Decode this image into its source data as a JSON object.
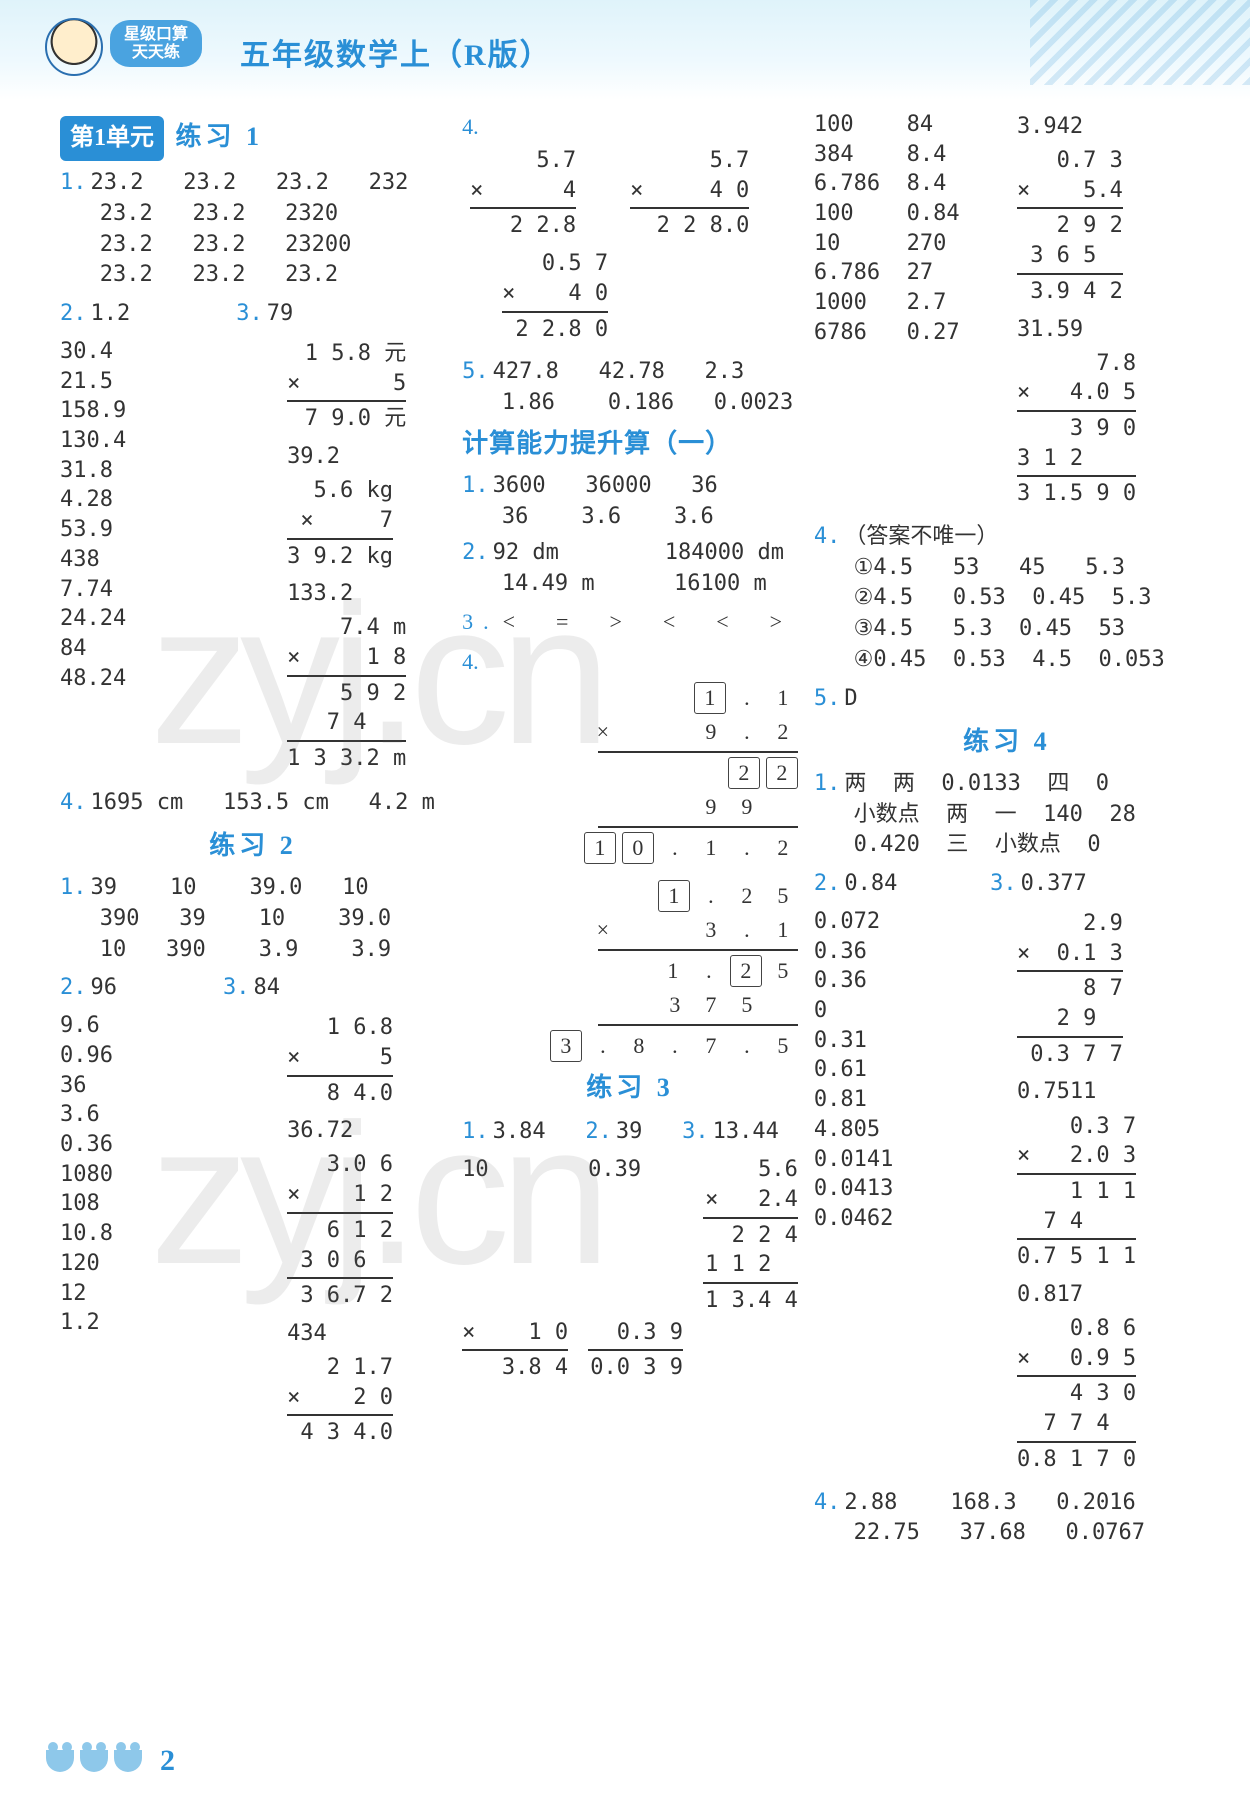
{
  "header": {
    "logo_top": "星级口算",
    "logo_bottom": "天天练",
    "title": "五年级数学上（R版）"
  },
  "unit_badge": "第1单元",
  "page_number": "2",
  "col1": {
    "ex1": {
      "title": "练习 1",
      "q1": {
        "row1": "23.2   23.2   23.2   232",
        "row2": "23.2   23.2   2320",
        "row3": "23.2   23.2   23200",
        "row4": "23.2   23.2   23.2"
      },
      "q2": "1.2",
      "q3": "79",
      "left_nums": [
        "30.4",
        "21.5",
        "158.9",
        "130.4",
        "31.8",
        "4.28",
        "53.9",
        "438",
        "7.74",
        "24.24",
        "84",
        "48.24"
      ],
      "calc1": {
        "n1": "1 5.8 元",
        "op": "×       5",
        "res": "7 9.0 元"
      },
      "right_a": "39.2",
      "calc2": {
        "n1": "5.6 kg",
        "op": "×     7",
        "res": "3 9.2 kg"
      },
      "right_b": "133.2",
      "calc3": {
        "n1": "7.4 m",
        "op": "×     1 8",
        "p1": "5 9 2",
        "p2": "7 4   ",
        "res": "1 3 3.2 m"
      },
      "q4": "1695 cm   153.5 cm   4.2 m"
    },
    "ex2": {
      "title": "练习 2",
      "q1": {
        "r1": "39    10    39.0   10",
        "r2": "390   39    10    39.0",
        "r3": "10   390    3.9    3.9"
      },
      "q2": "96",
      "q3": "84",
      "left_nums": [
        "9.6",
        "0.96",
        "36",
        "3.6",
        "0.36",
        "1080",
        "108",
        "10.8",
        "120",
        "12",
        "1.2"
      ],
      "calc1": {
        "n1": "1 6.8",
        "op": "×      5",
        "res": "8 4.0"
      },
      "right_a": "36.72",
      "calc2": {
        "n1": "3.0 6",
        "op": "×    1 2",
        "p1": "6 1 2",
        "p2": "3 0 6  ",
        "res": "3 6.7 2"
      },
      "right_b": "434",
      "calc3": {
        "n1": "2 1.7",
        "op": "×    2 0",
        "res": "4 3 4.0"
      }
    }
  },
  "col2": {
    "q4": {
      "left": {
        "n1": "5.7",
        "op": "×      4",
        "res": "2 2.8"
      },
      "right": {
        "n1": "5.7",
        "op": "×     4 0",
        "res": "2 2 8.0"
      },
      "extra": {
        "n1": "0.5 7",
        "op": "×    4 0",
        "res": "2 2.8 0"
      }
    },
    "q5": {
      "r1": "427.8   42.78   2.3",
      "r2": "1.86    0.186   0.0023"
    },
    "up1": {
      "title": "计算能力提升算（一）",
      "q1": {
        "r1": "3600   36000   36",
        "r2": "36    3.6    3.6"
      },
      "q2": {
        "r1": "92 dm        184000 dm",
        "r2": "14.49 m      16100 m"
      },
      "q3": "<  =  >  <  <  >",
      "q4": {
        "a": {
          "top": [
            "1",
            ".",
            "1"
          ],
          "mul": [
            "×",
            "",
            "",
            "9",
            ".",
            "2"
          ],
          "p1": [
            "",
            "",
            "2",
            "2"
          ],
          "p2": [
            "",
            "9",
            "9",
            ""
          ],
          "res": [
            "1",
            "0",
            ".",
            "1",
            ".",
            "2"
          ]
        },
        "b": {
          "top": [
            "1",
            ".",
            "2",
            "5"
          ],
          "mul": [
            "×",
            "",
            "",
            "3",
            ".",
            "1"
          ],
          "p1": [
            "",
            "1",
            ".",
            "2",
            "5"
          ],
          "p2": [
            "3",
            "7",
            "5",
            ""
          ],
          "res": [
            "3",
            ".",
            "8",
            ".",
            "7",
            ".",
            "5"
          ]
        }
      }
    },
    "ex3": {
      "title": "练习 3",
      "q1": "3.84",
      "q2": "39",
      "q3": "13.44",
      "cols": [
        "10",
        "0.39",
        "5.6"
      ],
      "calc1": {
        "n1": "",
        "op": "×    1 0",
        "res": "3.8 4"
      },
      "calc2": {
        "n1": "",
        "op": "0.3 9",
        "res": "0.0 3 9"
      },
      "calc3": {
        "n1": "5.6",
        "op": "×   2.4",
        "p1": "2 2 4",
        "p2": "1 1 2  ",
        "res": "1 3.4 4"
      }
    }
  },
  "col3": {
    "top": {
      "h1": [
        "100",
        "84",
        "3.942"
      ],
      "h2": [
        "384",
        "8.4"
      ],
      "h3": [
        "6.786",
        "8.4"
      ],
      "h4": [
        "100",
        "0.84"
      ],
      "h5": [
        "10",
        "270",
        "31.59"
      ],
      "h6": [
        "6.786",
        "27"
      ],
      "h7": [
        "1000",
        "2.7"
      ],
      "h8": [
        "6786",
        "0.27"
      ]
    },
    "calc1": {
      "n1": "0.7 3",
      "op": "×    5.4",
      "p1": "2 9 2",
      "p2": "3 6 5  ",
      "res": "3.9 4 2"
    },
    "calc2": {
      "n1": "7.8",
      "op": "×   4.0 5",
      "p1": "3 9 0",
      "p2": "3 1 2    ",
      "res": "3 1.5 9 0"
    },
    "q4": {
      "note": "（答案不唯一）",
      "r1": "①4.5   53   45   5.3",
      "r2": "②4.5   0.53  0.45  5.3",
      "r3": "③4.5   5.3  0.45  53",
      "r4": "④0.45  0.53  4.5  0.053"
    },
    "q5": "D",
    "ex4": {
      "title": "练习 4",
      "q1": {
        "r1": "两  两  0.0133  四  0",
        "r2": "小数点  两  一  140  28",
        "r3": "0.420  三  小数点  0"
      },
      "q2": "0.84",
      "q3": "0.377",
      "left_nums": [
        "0.072",
        "0.36",
        "0.36",
        "0",
        "0.31",
        "0.61",
        "0.81",
        "4.805",
        "0.0141",
        "0.0413",
        "0.0462"
      ],
      "calc1": {
        "n1": "2.9",
        "op": "×  0.1 3",
        "p1": "8 7",
        "p2": "2 9  ",
        "res": "0.3 7 7"
      },
      "right_a": "0.7511",
      "calc2": {
        "n1": "0.3 7",
        "op": "×   2.0 3",
        "p1": "1 1 1",
        "p2": "7 4    ",
        "res": "0.7 5 1 1"
      },
      "right_b": "0.817",
      "calc3": {
        "n1": "0.8 6",
        "op": "×   0.9 5",
        "p1": "4 3 0",
        "p2": "7 7 4  ",
        "res": "0.8 1 7 0"
      },
      "q4": {
        "r1": "2.88    168.3   0.2016",
        "r2": "22.75   37.68   0.0767"
      }
    }
  }
}
